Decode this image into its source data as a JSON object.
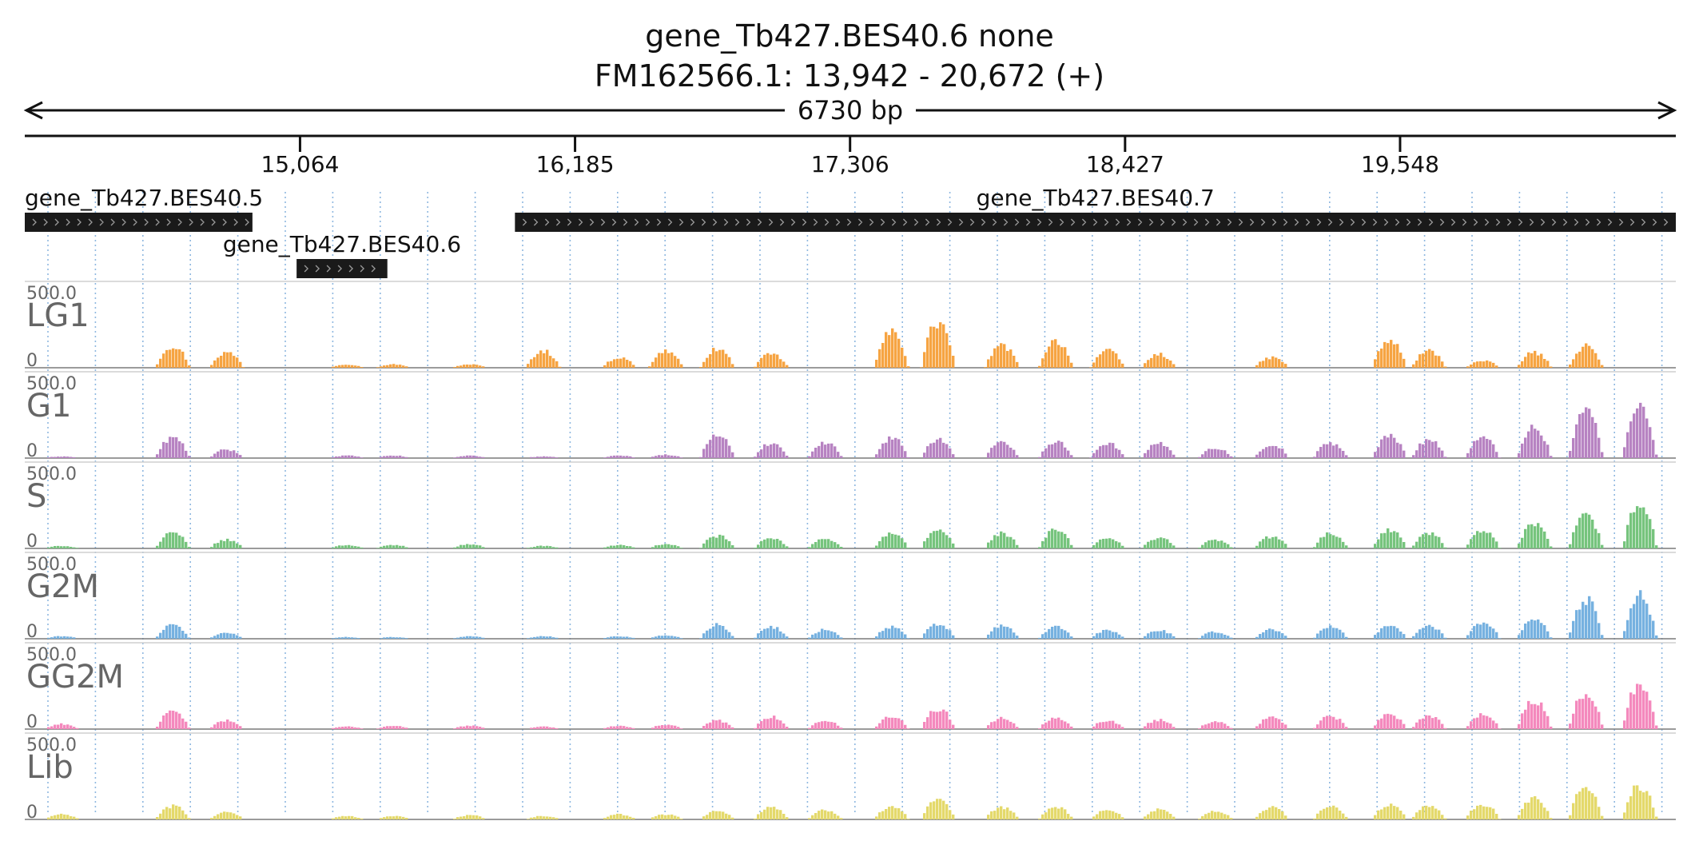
{
  "header": {
    "title_line1": "gene_Tb427.BES40.6  none",
    "title_line2": "FM162566.1: 13,942 - 20,672 (+)",
    "span_label": "6730 bp"
  },
  "chart_data": {
    "type": "area",
    "region": {
      "chrom": "FM162566.1",
      "start": 13942,
      "end": 20672,
      "strand": "+"
    },
    "ticks": [
      {
        "pos": 15064,
        "label": "15,064"
      },
      {
        "pos": 16185,
        "label": "16,185"
      },
      {
        "pos": 17306,
        "label": "17,306"
      },
      {
        "pos": 18427,
        "label": "18,427"
      },
      {
        "pos": 19548,
        "label": "19,548"
      }
    ],
    "genes": [
      {
        "name": "gene_Tb427.BES40.5",
        "start": 13942,
        "end": 14870,
        "strand": "+",
        "row": 0
      },
      {
        "name": "gene_Tb427.BES40.6",
        "start": 15050,
        "end": 15420,
        "strand": "+",
        "row": 1
      },
      {
        "name": "gene_Tb427.BES40.7",
        "start": 15940,
        "end": 20672,
        "strand": "+",
        "row": 0
      }
    ],
    "ylim": [
      0,
      500
    ],
    "max_label": "500.0",
    "zero_label": "0",
    "peak_positions": [
      14088,
      14540,
      14760,
      15250,
      15440,
      15750,
      16050,
      16360,
      16550,
      16760,
      16980,
      17200,
      17470,
      17660,
      17920,
      18140,
      18350,
      18560,
      18790,
      19020,
      19260,
      19500,
      19660,
      19880,
      20090,
      20300,
      20520
    ],
    "series": [
      {
        "name": "LG1",
        "color": "#f6a442",
        "peaks": [
          0,
          130,
          90,
          20,
          20,
          20,
          100,
          60,
          100,
          110,
          80,
          0,
          210,
          270,
          130,
          160,
          100,
          80,
          0,
          60,
          0,
          160,
          100,
          40,
          90,
          130,
          0
        ]
      },
      {
        "name": "G1",
        "color": "#b783c2",
        "peaks": [
          10,
          120,
          50,
          15,
          15,
          15,
          10,
          15,
          20,
          140,
          90,
          90,
          120,
          110,
          90,
          100,
          90,
          85,
          60,
          80,
          90,
          130,
          110,
          120,
          180,
          290,
          310
        ]
      },
      {
        "name": "S",
        "color": "#76c47d",
        "peaks": [
          15,
          90,
          50,
          20,
          20,
          25,
          15,
          20,
          25,
          75,
          60,
          60,
          85,
          110,
          90,
          110,
          60,
          65,
          50,
          70,
          90,
          110,
          90,
          100,
          140,
          190,
          260
        ]
      },
      {
        "name": "G2M",
        "color": "#76b1e0",
        "peaks": [
          15,
          80,
          35,
          10,
          10,
          15,
          15,
          15,
          20,
          85,
          70,
          55,
          70,
          85,
          75,
          70,
          50,
          50,
          40,
          55,
          70,
          80,
          75,
          100,
          120,
          230,
          260
        ]
      },
      {
        "name": "GG2M",
        "color": "#f489bd",
        "peaks": [
          30,
          100,
          50,
          15,
          20,
          20,
          15,
          20,
          25,
          50,
          75,
          50,
          75,
          120,
          65,
          70,
          50,
          55,
          45,
          70,
          75,
          85,
          80,
          90,
          170,
          220,
          270
        ]
      },
      {
        "name": "Lib",
        "color": "#e4d96b",
        "peaks": [
          30,
          80,
          45,
          20,
          20,
          25,
          20,
          30,
          30,
          50,
          75,
          55,
          80,
          110,
          70,
          75,
          55,
          60,
          50,
          70,
          80,
          85,
          80,
          90,
          120,
          190,
          200
        ]
      }
    ]
  }
}
